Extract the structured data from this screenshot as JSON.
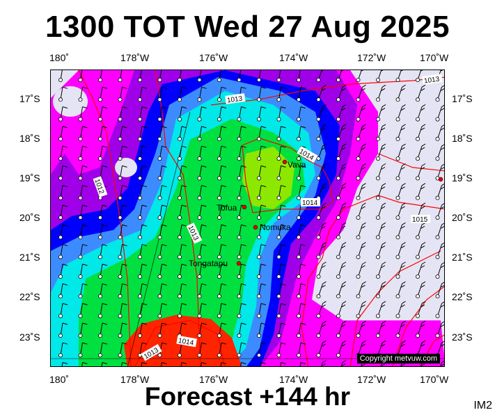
{
  "title": "1300 TOT Wed 27 Aug 2025",
  "footer": "Forecast +144 hr",
  "image_code": "IM2",
  "copyright": "Copyright metvuw.com",
  "axes": {
    "lon_labels": [
      "180˚",
      "178˚W",
      "176˚W",
      "174˚W",
      "172˚W",
      "170˚W"
    ],
    "lat_labels": [
      "17˚S",
      "18˚S",
      "19˚S",
      "20˚S",
      "21˚S",
      "22˚S",
      "23˚S"
    ]
  },
  "places": [
    {
      "name": "Vava",
      "lon": -174.0,
      "lat": -18.65
    },
    {
      "name": "Tofua",
      "lon": -175.05,
      "lat": -19.75
    },
    {
      "name": "Nomuka",
      "lon": -174.8,
      "lat": -20.25
    },
    {
      "name": "Tongatapu",
      "lon": -175.2,
      "lat": -21.15
    }
  ],
  "isobar_labels": [
    "1013",
    "1013",
    "1014",
    "1014",
    "1015",
    "1012",
    "1013",
    "1014",
    "1013"
  ],
  "colors": {
    "land": "#e4e4f4",
    "magenta": "#ff00ff",
    "purple": "#a000e8",
    "blue": "#0000ff",
    "lightblue": "#3c8cff",
    "cyan": "#00e8e8",
    "green": "#00e040",
    "yellowgreen": "#8ce800",
    "red": "#ff2400",
    "isobar": "#ff0000"
  }
}
